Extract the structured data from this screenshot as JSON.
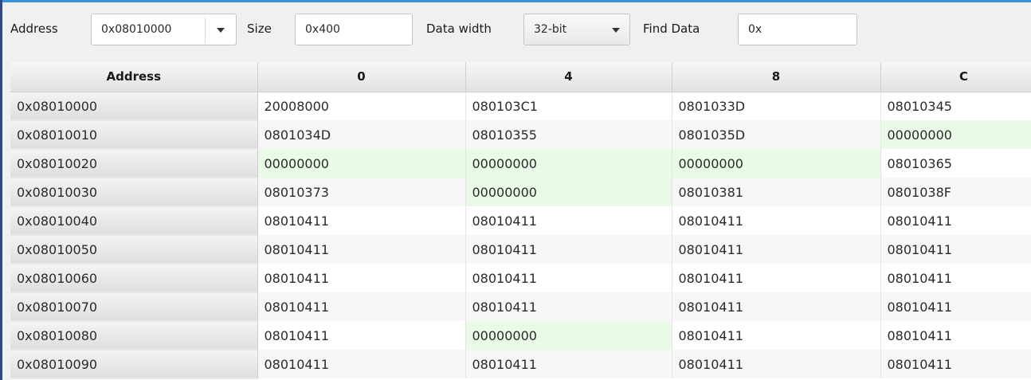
{
  "toolbar": {
    "address_label": "Address",
    "address_value": "0x08010000",
    "size_label": "Size",
    "size_value": "0x400",
    "data_width_label": "Data width",
    "data_width_value": "32-bit",
    "find_label": "Find Data",
    "find_value": "0x"
  },
  "colors": {
    "zero_highlight": "#e9fbe7",
    "accent_top": "#3a8fd6"
  },
  "grid": {
    "headers": [
      "Address",
      "0",
      "4",
      "8",
      "C"
    ],
    "rows": [
      {
        "addr": "0x08010000",
        "cells": [
          "20008000",
          "080103C1",
          "0801033D",
          "08010345"
        ],
        "zero": [
          false,
          false,
          false,
          false
        ]
      },
      {
        "addr": "0x08010010",
        "cells": [
          "0801034D",
          "08010355",
          "0801035D",
          "00000000"
        ],
        "zero": [
          false,
          false,
          false,
          true
        ]
      },
      {
        "addr": "0x08010020",
        "cells": [
          "00000000",
          "00000000",
          "00000000",
          "08010365"
        ],
        "zero": [
          true,
          true,
          true,
          false
        ]
      },
      {
        "addr": "0x08010030",
        "cells": [
          "08010373",
          "00000000",
          "08010381",
          "0801038F"
        ],
        "zero": [
          false,
          true,
          false,
          false
        ]
      },
      {
        "addr": "0x08010040",
        "cells": [
          "08010411",
          "08010411",
          "08010411",
          "08010411"
        ],
        "zero": [
          false,
          false,
          false,
          false
        ]
      },
      {
        "addr": "0x08010050",
        "cells": [
          "08010411",
          "08010411",
          "08010411",
          "08010411"
        ],
        "zero": [
          false,
          false,
          false,
          false
        ]
      },
      {
        "addr": "0x08010060",
        "cells": [
          "08010411",
          "08010411",
          "08010411",
          "08010411"
        ],
        "zero": [
          false,
          false,
          false,
          false
        ]
      },
      {
        "addr": "0x08010070",
        "cells": [
          "08010411",
          "08010411",
          "08010411",
          "08010411"
        ],
        "zero": [
          false,
          false,
          false,
          false
        ]
      },
      {
        "addr": "0x08010080",
        "cells": [
          "08010411",
          "00000000",
          "08010411",
          "08010411"
        ],
        "zero": [
          false,
          true,
          false,
          false
        ]
      },
      {
        "addr": "0x08010090",
        "cells": [
          "08010411",
          "08010411",
          "08010411",
          "08010411"
        ],
        "zero": [
          false,
          false,
          false,
          false
        ]
      }
    ]
  }
}
